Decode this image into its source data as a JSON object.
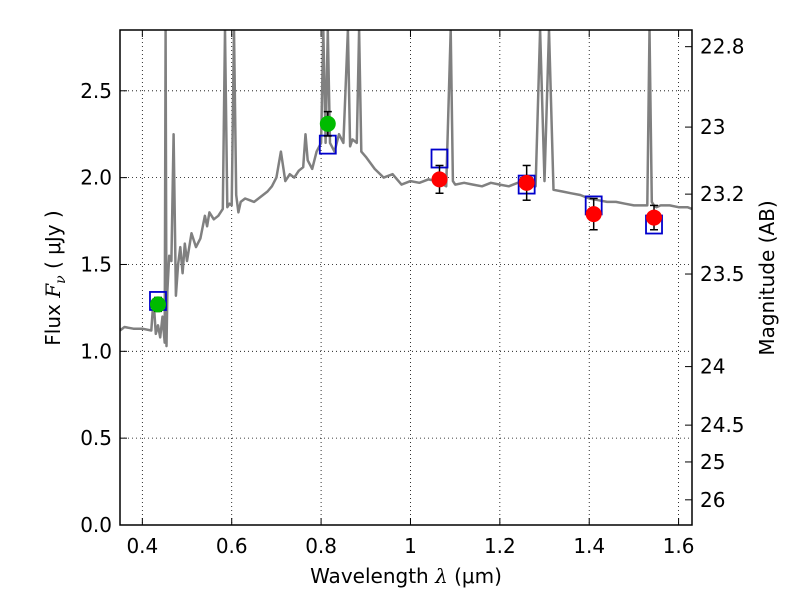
{
  "chart_data": {
    "type": "scatter",
    "title": "",
    "xlabel": "Wavelength  λ (μm)",
    "xlabel_parts": {
      "text": "Wavelength ",
      "lambda": "λ",
      "unit": " (μm)"
    },
    "ylabel": "Flux  Fν ( μJy )",
    "ylabel_parts": {
      "text": "Flux  ",
      "sym": "F",
      "sub": "ν",
      "unit": " ( μJy )"
    },
    "y2label": "Magnitude (AB)",
    "xlim": [
      0.35,
      1.63
    ],
    "ylim": [
      0.0,
      2.85
    ],
    "grid": true,
    "legend": "none",
    "x_ticks": [
      0.4,
      0.6,
      0.8,
      1.0,
      1.2,
      1.4,
      1.6
    ],
    "x_tick_labels": [
      "0.4",
      "0.6",
      "0.8",
      "1",
      "1.2",
      "1.4",
      "1.6"
    ],
    "y_ticks": [
      0.0,
      0.5,
      1.0,
      1.5,
      2.0,
      2.5
    ],
    "y_tick_labels": [
      "0.0",
      "0.5",
      "1.0",
      "1.5",
      "2.0",
      "2.5"
    ],
    "y2_ticks": [
      {
        "flux": 2.754,
        "label": "22.8"
      },
      {
        "flux": 2.291,
        "label": "23"
      },
      {
        "flux": 1.905,
        "label": "23.2"
      },
      {
        "flux": 1.445,
        "label": "23.5"
      },
      {
        "flux": 0.912,
        "label": "24"
      },
      {
        "flux": 0.575,
        "label": "24.5"
      },
      {
        "flux": 0.363,
        "label": "25"
      },
      {
        "flux": 0.145,
        "label": "26"
      }
    ],
    "series": [
      {
        "kind": "spectrum",
        "color": "#808080",
        "x": [
          0.35,
          0.36,
          0.38,
          0.4,
          0.42,
          0.425,
          0.43,
          0.435,
          0.44,
          0.445,
          0.45,
          0.452,
          0.454,
          0.456,
          0.46,
          0.465,
          0.47,
          0.475,
          0.48,
          0.485,
          0.49,
          0.495,
          0.5,
          0.51,
          0.52,
          0.53,
          0.54,
          0.545,
          0.55,
          0.56,
          0.57,
          0.58,
          0.585,
          0.59,
          0.595,
          0.6,
          0.605,
          0.61,
          0.615,
          0.62,
          0.63,
          0.64,
          0.65,
          0.66,
          0.67,
          0.68,
          0.69,
          0.7,
          0.71,
          0.72,
          0.73,
          0.74,
          0.75,
          0.76,
          0.765,
          0.77,
          0.78,
          0.79,
          0.8,
          0.805,
          0.81,
          0.815,
          0.82,
          0.83,
          0.84,
          0.85,
          0.86,
          0.865,
          0.87,
          0.88,
          0.885,
          0.89,
          0.9,
          0.92,
          0.94,
          0.96,
          0.98,
          1.0,
          1.02,
          1.04,
          1.06,
          1.08,
          1.09,
          1.095,
          1.1,
          1.12,
          1.14,
          1.16,
          1.18,
          1.2,
          1.22,
          1.24,
          1.26,
          1.28,
          1.29,
          1.3,
          1.31,
          1.32,
          1.34,
          1.36,
          1.38,
          1.4,
          1.42,
          1.44,
          1.46,
          1.48,
          1.5,
          1.52,
          1.53,
          1.535,
          1.54,
          1.545,
          1.55,
          1.56,
          1.58,
          1.6,
          1.62,
          1.63
        ],
        "y": [
          1.12,
          1.14,
          1.13,
          1.13,
          1.12,
          1.3,
          1.1,
          1.15,
          1.08,
          1.2,
          1.05,
          2.85,
          1.03,
          1.35,
          1.55,
          1.52,
          2.25,
          1.32,
          1.5,
          1.6,
          1.45,
          1.62,
          1.52,
          1.68,
          1.6,
          1.65,
          1.78,
          1.72,
          1.8,
          1.76,
          1.78,
          1.82,
          2.85,
          1.83,
          1.85,
          1.84,
          2.85,
          1.9,
          1.8,
          1.86,
          1.88,
          1.87,
          1.86,
          1.88,
          1.9,
          1.92,
          1.95,
          2.0,
          2.15,
          1.98,
          2.02,
          2.0,
          2.04,
          2.06,
          2.25,
          2.1,
          2.05,
          2.15,
          2.2,
          2.85,
          2.2,
          2.85,
          2.2,
          2.15,
          2.25,
          2.2,
          2.85,
          2.18,
          2.22,
          2.2,
          2.85,
          2.15,
          2.12,
          2.05,
          2.0,
          2.02,
          1.96,
          1.98,
          1.97,
          1.99,
          1.98,
          1.95,
          2.85,
          1.98,
          1.96,
          1.97,
          1.96,
          1.95,
          1.97,
          1.96,
          1.95,
          1.97,
          1.96,
          1.95,
          2.85,
          1.98,
          2.85,
          1.93,
          1.92,
          1.91,
          1.9,
          1.88,
          1.87,
          1.86,
          1.86,
          1.85,
          1.84,
          1.84,
          1.84,
          2.85,
          1.86,
          1.84,
          1.83,
          1.84,
          1.84,
          1.83,
          1.83,
          1.82
        ]
      },
      {
        "kind": "photometry",
        "color": "#00bb00",
        "points": [
          {
            "x": 0.435,
            "y": 1.27,
            "err": 0.04
          },
          {
            "x": 0.815,
            "y": 2.31,
            "err": 0.07
          }
        ]
      },
      {
        "kind": "photometry",
        "color": "#ff0000",
        "points": [
          {
            "x": 1.065,
            "y": 1.99,
            "err": 0.08
          },
          {
            "x": 1.26,
            "y": 1.97,
            "err": 0.1
          },
          {
            "x": 1.41,
            "y": 1.79,
            "err": 0.09
          },
          {
            "x": 1.545,
            "y": 1.77,
            "err": 0.07
          }
        ]
      },
      {
        "kind": "model_boxes",
        "color": "#0000cc",
        "points": [
          {
            "x": 0.435,
            "y": 1.29
          },
          {
            "x": 0.815,
            "y": 2.19
          },
          {
            "x": 1.065,
            "y": 2.11
          },
          {
            "x": 1.26,
            "y": 1.96
          },
          {
            "x": 1.41,
            "y": 1.84
          },
          {
            "x": 1.545,
            "y": 1.73
          }
        ]
      }
    ]
  }
}
